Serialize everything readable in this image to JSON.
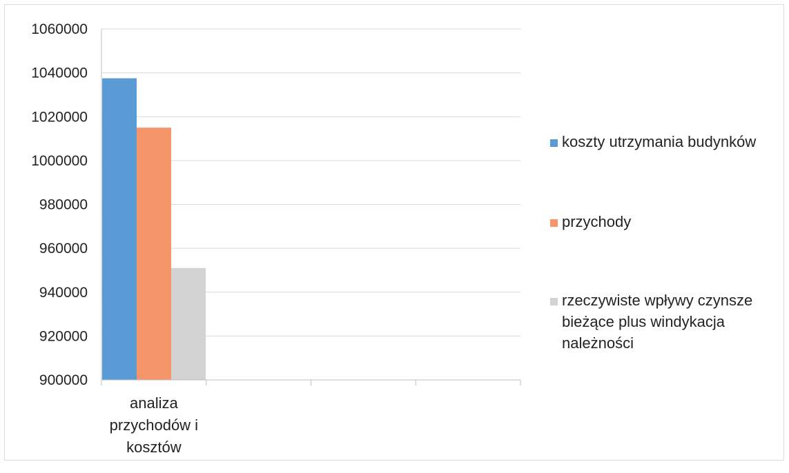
{
  "chart_data": {
    "type": "bar",
    "title": "",
    "xlabel": "",
    "ylabel": "",
    "ylim": [
      900000,
      1060000
    ],
    "yticks": [
      900000,
      920000,
      940000,
      960000,
      980000,
      1000000,
      1020000,
      1040000,
      1060000
    ],
    "ytick_labels": [
      "900000",
      "920000",
      "940000",
      "960000",
      "980000",
      "1000000",
      "1020000",
      "1040000",
      "1060000"
    ],
    "grid": true,
    "legend_position": "right",
    "categories": [
      "analiza przychodów i kosztów"
    ],
    "category_label_lines": [
      [
        "analiza",
        "przychodów i",
        "kosztów"
      ]
    ],
    "series": [
      {
        "name": "koszty utrzymania budynków",
        "name_lines": [
          "koszty utrzymania budynków"
        ],
        "color": "#5b9bd5",
        "values": [
          1037500
        ]
      },
      {
        "name": "przychody",
        "name_lines": [
          "przychody"
        ],
        "color": "#f4956a",
        "values": [
          1015000
        ]
      },
      {
        "name": "rzeczywiste wpływy czynsze bieżące plus windykacja należności",
        "name_lines": [
          "rzeczywiste wpływy czynsze",
          "bieżące plus windykacja",
          "należności"
        ],
        "color": "#d3d3d3",
        "values": [
          951000
        ]
      }
    ]
  }
}
